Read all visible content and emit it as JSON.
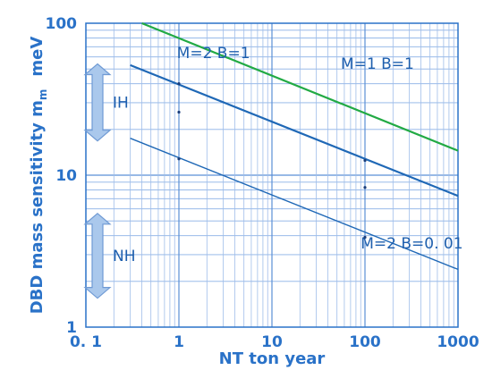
{
  "chart_data": {
    "type": "line",
    "xlabel": "NT ton year",
    "ylabel": "DBD mass sensitivity m",
    "ylabel_sub": "m",
    "ylabel_unit": "meV",
    "x_scale": "log",
    "y_scale": "log",
    "xlim": [
      0.1,
      1000
    ],
    "ylim": [
      1,
      100
    ],
    "grid": true,
    "x_ticks": [
      {
        "value": 0.1,
        "label": "0. 1"
      },
      {
        "value": 1,
        "label": "1"
      },
      {
        "value": 10,
        "label": "10"
      },
      {
        "value": 100,
        "label": "100"
      },
      {
        "value": 1000,
        "label": "1000"
      }
    ],
    "y_ticks": [
      {
        "value": 1,
        "label": "1"
      },
      {
        "value": 10,
        "label": "10"
      },
      {
        "value": 100,
        "label": "100"
      }
    ],
    "series": [
      {
        "label": "M=1  B=1",
        "color": "#22aa44",
        "x": [
          0.4,
          1000
        ],
        "y": [
          100,
          14.5
        ],
        "label_pos": [
          55,
          50
        ]
      },
      {
        "label": "M=2  B=1",
        "color": "#1f68b6",
        "x": [
          0.3,
          1000
        ],
        "y": [
          53,
          7.3
        ],
        "label_pos": [
          0.95,
          59
        ]
      },
      {
        "label": "M=2  B=0. 01",
        "color": "#1f68b6",
        "x": [
          0.3,
          1000
        ],
        "y": [
          17.5,
          2.4
        ],
        "label_pos": [
          90,
          3.3
        ]
      }
    ],
    "markers": [
      {
        "x": 1,
        "y": 40
      },
      {
        "x": 1,
        "y": 26
      },
      {
        "x": 1,
        "y": 12.8
      },
      {
        "x": 100,
        "y": 12.5
      },
      {
        "x": 100,
        "y": 8.3
      },
      {
        "x": 100,
        "y": 3.9
      }
    ],
    "bands": [
      {
        "label": "IH",
        "y_range": [
          16.8,
          54
        ]
      },
      {
        "label": "NH",
        "y_range": [
          1.55,
          5.6
        ]
      }
    ]
  }
}
